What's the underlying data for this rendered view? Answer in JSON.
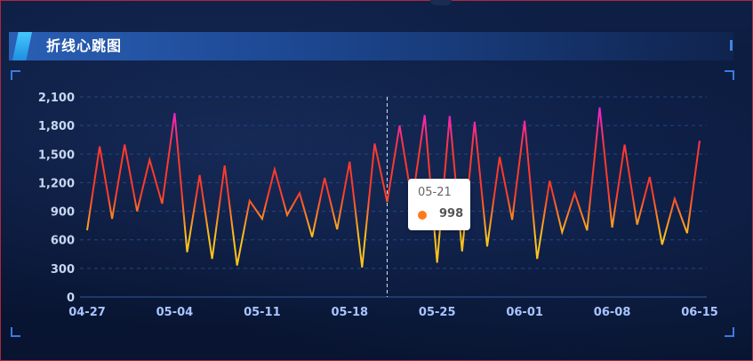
{
  "panel": {
    "title": "折线心跳图"
  },
  "colors": {
    "line_low": "#ffc21c",
    "line_mid": "#ff3a2a",
    "line_high": "#ee1aff",
    "grid": "#24467f",
    "tooltip_dot": "#ff7a1a"
  },
  "tooltip": {
    "label": "05-21",
    "value": "998"
  },
  "chart_data": {
    "type": "line",
    "title": "",
    "xlabel": "",
    "ylabel": "",
    "ylim": [
      0,
      2100
    ],
    "y_ticks": [
      "0",
      "300",
      "600",
      "900",
      "1,200",
      "1,500",
      "1,800",
      "2,100"
    ],
    "x_tick_labels": [
      "04-27",
      "05-04",
      "05-11",
      "05-18",
      "05-25",
      "06-01",
      "06-08",
      "06-15"
    ],
    "grid": true,
    "legend": "none",
    "x": [
      "04-27",
      "04-28",
      "04-29",
      "04-30",
      "05-01",
      "05-02",
      "05-03",
      "05-04",
      "05-05",
      "05-06",
      "05-07",
      "05-08",
      "05-09",
      "05-10",
      "05-11",
      "05-12",
      "05-13",
      "05-14",
      "05-15",
      "05-16",
      "05-17",
      "05-18",
      "05-19",
      "05-20",
      "05-21",
      "05-22",
      "05-23",
      "05-24",
      "05-25",
      "05-26",
      "05-27",
      "05-28",
      "05-29",
      "05-30",
      "05-31",
      "06-01",
      "06-02",
      "06-03",
      "06-04",
      "06-05",
      "06-06",
      "06-07",
      "06-08",
      "06-09",
      "06-10",
      "06-11",
      "06-12",
      "06-13",
      "06-14",
      "06-15"
    ],
    "series": [
      {
        "values": [
          700,
          1580,
          820,
          1600,
          900,
          1440,
          980,
          1930,
          470,
          1280,
          400,
          1380,
          330,
          1010,
          820,
          1340,
          860,
          1090,
          630,
          1250,
          710,
          1420,
          310,
          1610,
          998,
          1800,
          1000,
          1910,
          360,
          1900,
          480,
          1840,
          530,
          1470,
          810,
          1850,
          400,
          1220,
          680,
          1090,
          700,
          1990,
          730,
          1600,
          760,
          1260,
          550,
          1030,
          670,
          1640
        ]
      }
    ]
  }
}
